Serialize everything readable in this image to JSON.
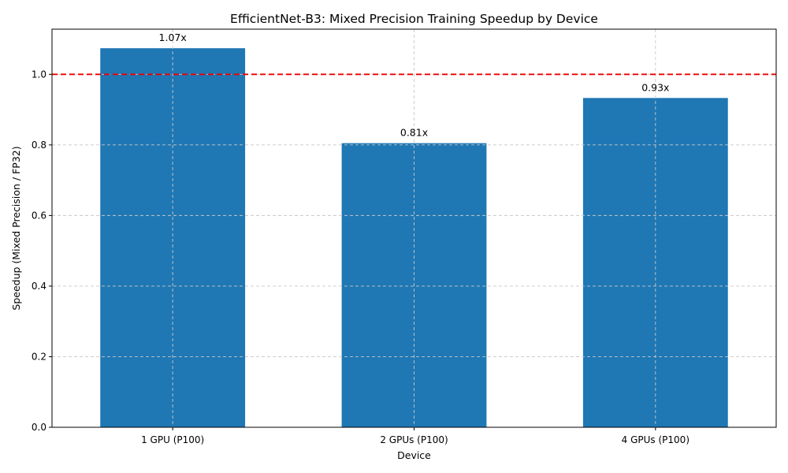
{
  "chart_data": {
    "type": "bar",
    "title": "EfficientNet-B3: Mixed Precision Training Speedup by Device",
    "xlabel": "Device",
    "ylabel": "Speedup (Mixed Precision / FP32)",
    "categories": [
      "1 GPU (P100)",
      "2 GPUs (P100)",
      "4 GPUs (P100)"
    ],
    "values": [
      1.074,
      0.805,
      0.933
    ],
    "data_labels": [
      "1.07x",
      "0.81x",
      "0.93x"
    ],
    "ylim": [
      0,
      1.128
    ],
    "yticks": [
      "0.0",
      "0.2",
      "0.4",
      "0.6",
      "0.8",
      "1.0"
    ],
    "ytick_values": [
      0,
      0.2,
      0.4,
      0.6,
      0.8,
      1.0
    ],
    "reference_line": {
      "value": 1.0,
      "style": "dashed",
      "color": "#ee0000"
    },
    "grid": true,
    "colors": {
      "bar": "#1f77b4",
      "grid": "#c8c8c8",
      "axis": "#000000"
    }
  }
}
